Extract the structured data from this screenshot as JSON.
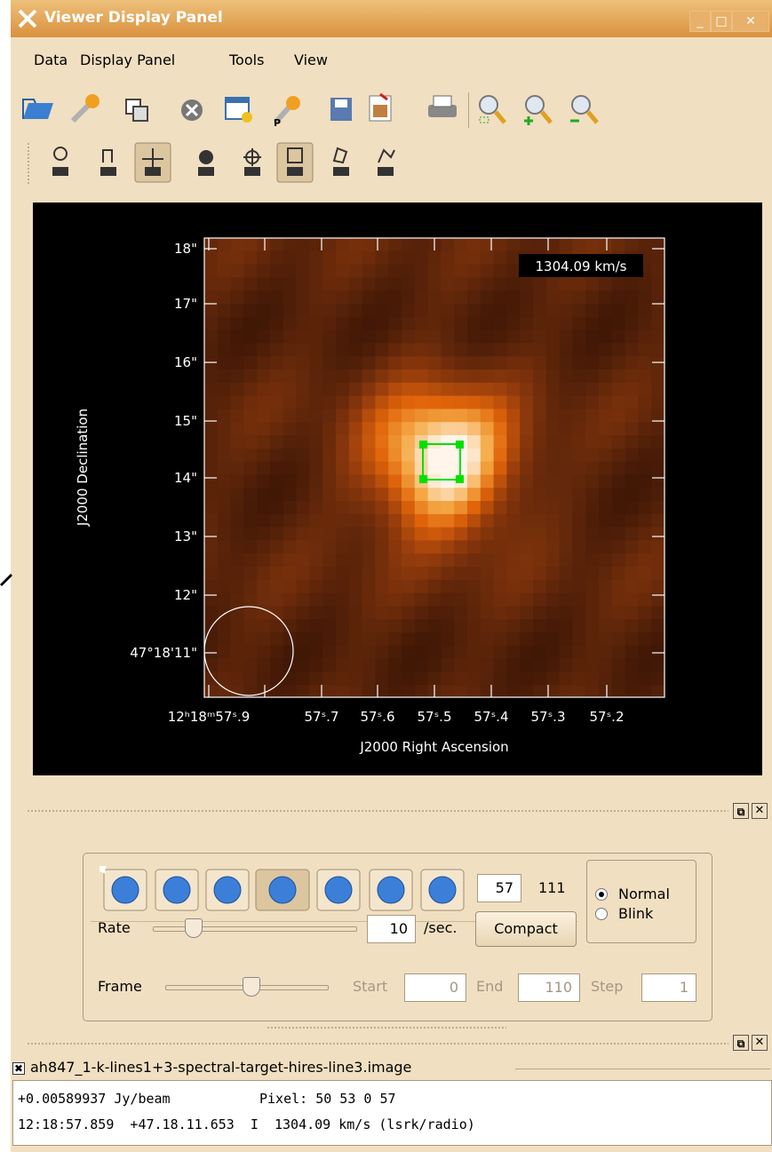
{
  "window": {
    "title": "Viewer Display Panel"
  },
  "menu": [
    "Data",
    "Display Panel",
    "Tools",
    "View"
  ],
  "plot": {
    "velocity_label": "1304.09 km/s",
    "y_axis_title": "J2000 Declination",
    "x_axis_title": "J2000 Right Ascension",
    "y_tick_labels": [
      "18\"",
      "17\"",
      "16\"",
      "15\"",
      "14\"",
      "13\"",
      "12\"",
      "47°18'11\""
    ],
    "x_tick_labels": [
      "12ʰ18ᵐ57ˢ.9",
      "57ˢ.7",
      "57ˢ.6",
      "57ˢ.5",
      "57ˢ.4",
      "57ˢ.3",
      "57ˢ.2"
    ]
  },
  "animator": {
    "frame": "57",
    "frame_count": "111",
    "modes": [
      "Normal",
      "Blink"
    ],
    "rate_label": "Rate",
    "rate": "10",
    "rate_unit": "/sec.",
    "compact": "Compact",
    "frame_label": "Frame",
    "start_label": "Start",
    "start": "0",
    "end_label": "End",
    "end": "110",
    "step_label": "Step",
    "step": "1"
  },
  "position": {
    "image_name": "ah847_1-k-lines1+3-spectral-target-hires-line3.image",
    "value": "+0.00589937 Jy/beam",
    "pixel": "Pixel: 50 53 0 57",
    "world": "12:18:57.859  +47.18.11.653  I  1304.09 km/s (lsrk/radio)"
  }
}
